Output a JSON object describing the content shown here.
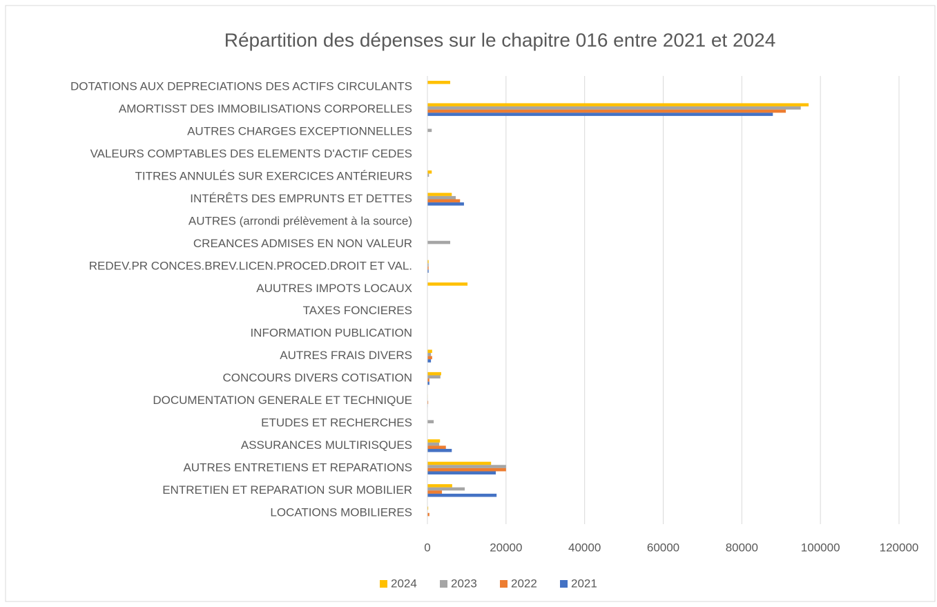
{
  "chart_data": {
    "type": "hbar",
    "title": "Répartition des dépenses sur le chapitre 016 entre 2021 et 2024",
    "categories": [
      "DOTATIONS AUX DEPRECIATIONS DES ACTIFS CIRCULANTS",
      "AMORTISST DES IMMOBILISATIONS CORPORELLES",
      "AUTRES CHARGES EXCEPTIONNELLES",
      "VALEURS COMPTABLES DES ELEMENTS D'ACTIF CEDES",
      "TITRES ANNULÉS SUR EXERCICES ANTÉRIEURS",
      "INTÉRÊTS DES EMPRUNTS ET DETTES",
      "AUTRES (arrondi prélèvement à la source)",
      "CREANCES ADMISES EN NON VALEUR",
      "REDEV.PR CONCES.BREV.LICEN.PROCED.DROIT ET VAL.",
      "AUUTRES IMPOTS LOCAUX",
      "TAXES FONCIERES",
      "INFORMATION PUBLICATION",
      "AUTRES FRAIS DIVERS",
      "CONCOURS DIVERS COTISATION",
      "DOCUMENTATION GENERALE ET TECHNIQUE",
      "ETUDES ET RECHERCHES",
      "ASSURANCES MULTIRISQUES",
      "AUTRES ENTRETIENS ET REPARATIONS",
      "ENTRETIEN ET REPARATION SUR MOBILIER",
      "LOCATIONS MOBILIERES"
    ],
    "series": [
      {
        "name": "2024",
        "color": "#ffc000",
        "values": [
          5800,
          97000,
          0,
          0,
          1100,
          6200,
          0,
          0,
          300,
          10200,
          0,
          0,
          1200,
          3500,
          100,
          0,
          3200,
          16200,
          6300,
          200
        ]
      },
      {
        "name": "2023",
        "color": "#a5a5a5",
        "values": [
          0,
          95000,
          1100,
          0,
          400,
          7200,
          0,
          5800,
          300,
          0,
          0,
          0,
          900,
          3300,
          100,
          1600,
          3000,
          20000,
          9500,
          0
        ]
      },
      {
        "name": "2022",
        "color": "#ed7d31",
        "values": [
          0,
          91200,
          0,
          0,
          0,
          8300,
          0,
          0,
          300,
          0,
          0,
          0,
          1200,
          500,
          200,
          0,
          4700,
          20000,
          3700,
          500
        ]
      },
      {
        "name": "2021",
        "color": "#4472c4",
        "values": [
          0,
          87900,
          0,
          0,
          0,
          9300,
          0,
          0,
          300,
          0,
          0,
          0,
          900,
          500,
          100,
          0,
          6200,
          17400,
          17600,
          0
        ]
      }
    ],
    "xlim": [
      0,
      120000
    ],
    "xticks": [
      0,
      20000,
      40000,
      60000,
      80000,
      100000,
      120000
    ],
    "grid": true,
    "legend": "bottom"
  }
}
